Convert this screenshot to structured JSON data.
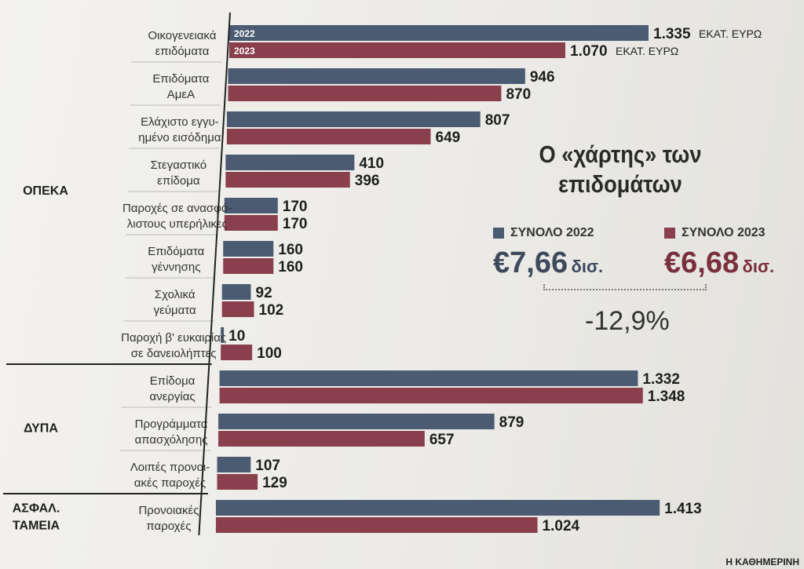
{
  "chart_data": {
    "type": "bar",
    "orientation": "horizontal",
    "title": "Ο «χάρτης» των επιδομάτων",
    "unit_label": "ΕΚΑΤ. ΕΥΡΩ",
    "series_names": [
      "2022",
      "2023"
    ],
    "colors": {
      "2022": "#4a5b72",
      "2023": "#8a3f4c"
    },
    "groups": [
      {
        "name": "ΟΠΕΚΑ",
        "items": [
          {
            "label": [
              "Οικογενειακά",
              "επιδόματα"
            ],
            "v2022": 1335,
            "v2023": 1070,
            "t2022": "1.335",
            "t2023": "1.070"
          },
          {
            "label": [
              "Επιδόματα",
              "ΑμεΑ"
            ],
            "v2022": 946,
            "v2023": 870,
            "t2022": "946",
            "t2023": "870"
          },
          {
            "label": [
              "Ελάχιστο εγγυ-",
              "ημένο εισόδημα"
            ],
            "v2022": 807,
            "v2023": 649,
            "t2022": "807",
            "t2023": "649"
          },
          {
            "label": [
              "Στεγαστικό",
              "επίδομα"
            ],
            "v2022": 410,
            "v2023": 396,
            "t2022": "410",
            "t2023": "396"
          },
          {
            "label": [
              "Παροχές σε ανασφά-",
              "λιστους υπερήλικες"
            ],
            "v2022": 170,
            "v2023": 170,
            "t2022": "170",
            "t2023": "170"
          },
          {
            "label": [
              "Επιδόματα",
              "γέννησης"
            ],
            "v2022": 160,
            "v2023": 160,
            "t2022": "160",
            "t2023": "160"
          },
          {
            "label": [
              "Σχολικά",
              "γεύματα"
            ],
            "v2022": 92,
            "v2023": 102,
            "t2022": "92",
            "t2023": "102"
          },
          {
            "label": [
              "Παροχή β' ευκαιρίας",
              "σε δανειολήπτες"
            ],
            "v2022": 10,
            "v2023": 100,
            "t2022": "10",
            "t2023": "100"
          }
        ]
      },
      {
        "name": "ΔΥΠΑ",
        "items": [
          {
            "label": [
              "Επίδομα",
              "ανεργίας"
            ],
            "v2022": 1332,
            "v2023": 1348,
            "t2022": "1.332",
            "t2023": "1.348"
          },
          {
            "label": [
              "Προγράμματα",
              "απασχόλησης"
            ],
            "v2022": 879,
            "v2023": 657,
            "t2022": "879",
            "t2023": "657"
          },
          {
            "label": [
              "Λοιπές προνοι-",
              "ακές παροχές"
            ],
            "v2022": 107,
            "v2023": 129,
            "t2022": "107",
            "t2023": "129"
          }
        ]
      },
      {
        "name": [
          "ΑΣΦΑΛ.",
          "ΤΑΜΕΙΑ"
        ],
        "items": [
          {
            "label": [
              "Προνοιακές",
              "παροχές"
            ],
            "v2022": 1413,
            "v2023": 1024,
            "t2022": "1.413",
            "t2023": "1.024"
          }
        ]
      }
    ]
  },
  "summary": {
    "total_2022_label": "ΣΥΝΟΛΟ 2022",
    "total_2022_value": "€7,66",
    "total_2023_label": "ΣΥΝΟΛΟ 2023",
    "total_2023_value": "€6,68",
    "unit": "δισ.",
    "change": "-12,9%"
  },
  "source": "Η ΚΑΘΗΜΕΡΙΝΗ"
}
